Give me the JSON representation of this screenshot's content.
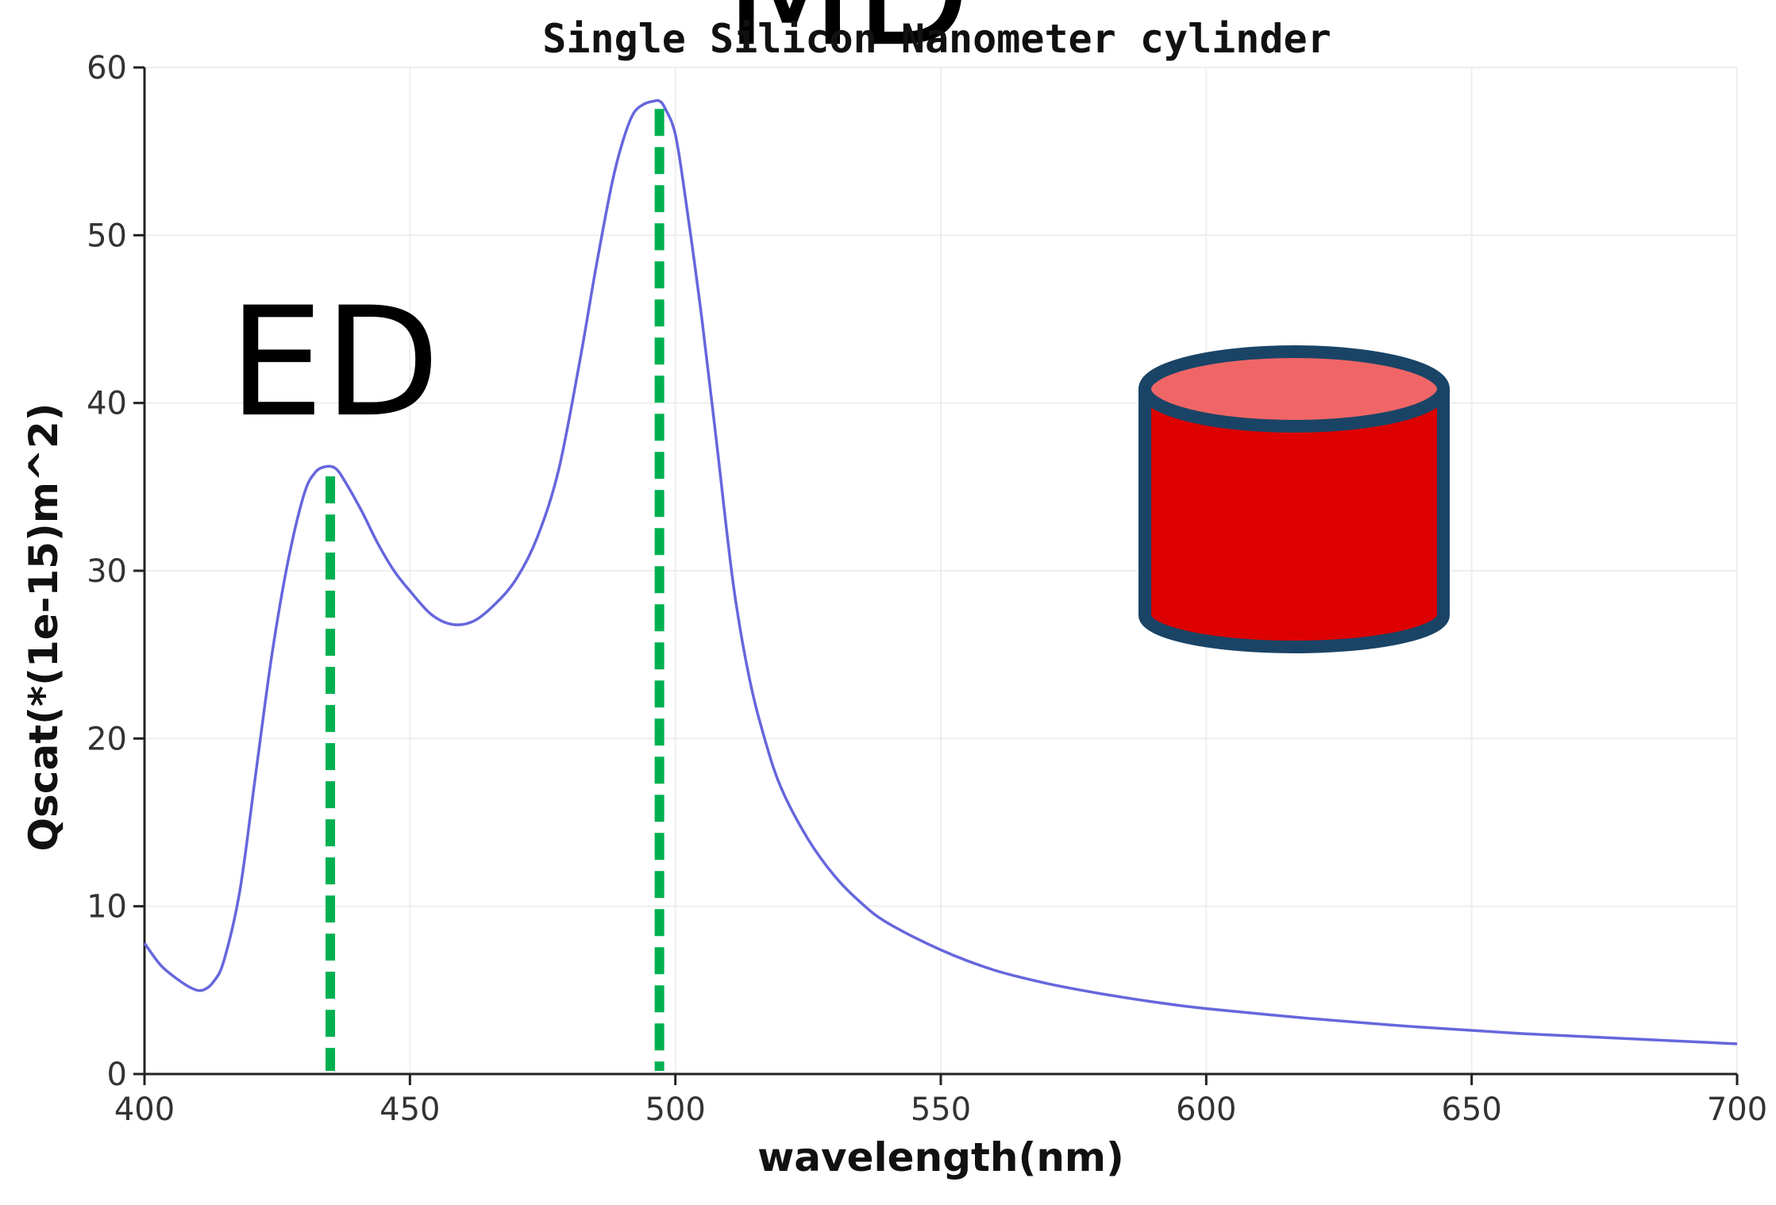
{
  "chart_data": {
    "type": "line",
    "title": "Single Silicon Nanometer cylinder",
    "xlabel": "wavelength(nm)",
    "ylabel": "Qscat(*(1e-15)m^2)",
    "xlim": [
      400,
      700
    ],
    "ylim": [
      0,
      60
    ],
    "xticks": [
      400,
      450,
      500,
      550,
      600,
      650,
      700
    ],
    "yticks": [
      0,
      10,
      20,
      30,
      40,
      50,
      60
    ],
    "grid": true,
    "series": [
      {
        "color": "#6666dd",
        "x": [
          400,
          403,
          406,
          409,
          411,
          413,
          415,
          418,
          421,
          424,
          427,
          430,
          432,
          434,
          436,
          438,
          441,
          444,
          447,
          450,
          454,
          458,
          462,
          466,
          470,
          474,
          478,
          482,
          485,
          488,
          490,
          492,
          494,
          496,
          497,
          498,
          500,
          502,
          505,
          508,
          511,
          514,
          517,
          520,
          525,
          530,
          535,
          540,
          550,
          560,
          570,
          580,
          590,
          600,
          620,
          640,
          660,
          680,
          700
        ],
        "y": [
          7.8,
          6.5,
          5.7,
          5.1,
          5.0,
          5.5,
          6.8,
          11,
          18,
          25,
          30.5,
          34.5,
          35.8,
          36.2,
          36.1,
          35.2,
          33.5,
          31.6,
          30,
          28.8,
          27.4,
          26.8,
          27,
          28,
          29.5,
          32,
          36,
          42.5,
          48,
          53,
          55.5,
          57.2,
          57.8,
          58.0,
          58.0,
          57.6,
          56,
          52,
          45,
          37,
          29,
          23.5,
          19.8,
          17,
          14,
          11.8,
          10.2,
          9.0,
          7.4,
          6.2,
          5.4,
          4.8,
          4.3,
          3.9,
          3.3,
          2.8,
          2.4,
          2.1,
          1.8
        ]
      }
    ],
    "markers": [
      {
        "label": "ED",
        "x": 435,
        "y": 36.1,
        "color": "#00b050",
        "style": "dashed"
      },
      {
        "label": "MD",
        "x": 497,
        "y": 58.0,
        "color": "#00b050",
        "style": "dashed"
      }
    ],
    "annotations": [
      {
        "type": "cylinder-icon",
        "side_fill": "#dd0000",
        "top_fill": "#f06666",
        "outline": "#1a4466"
      }
    ]
  }
}
